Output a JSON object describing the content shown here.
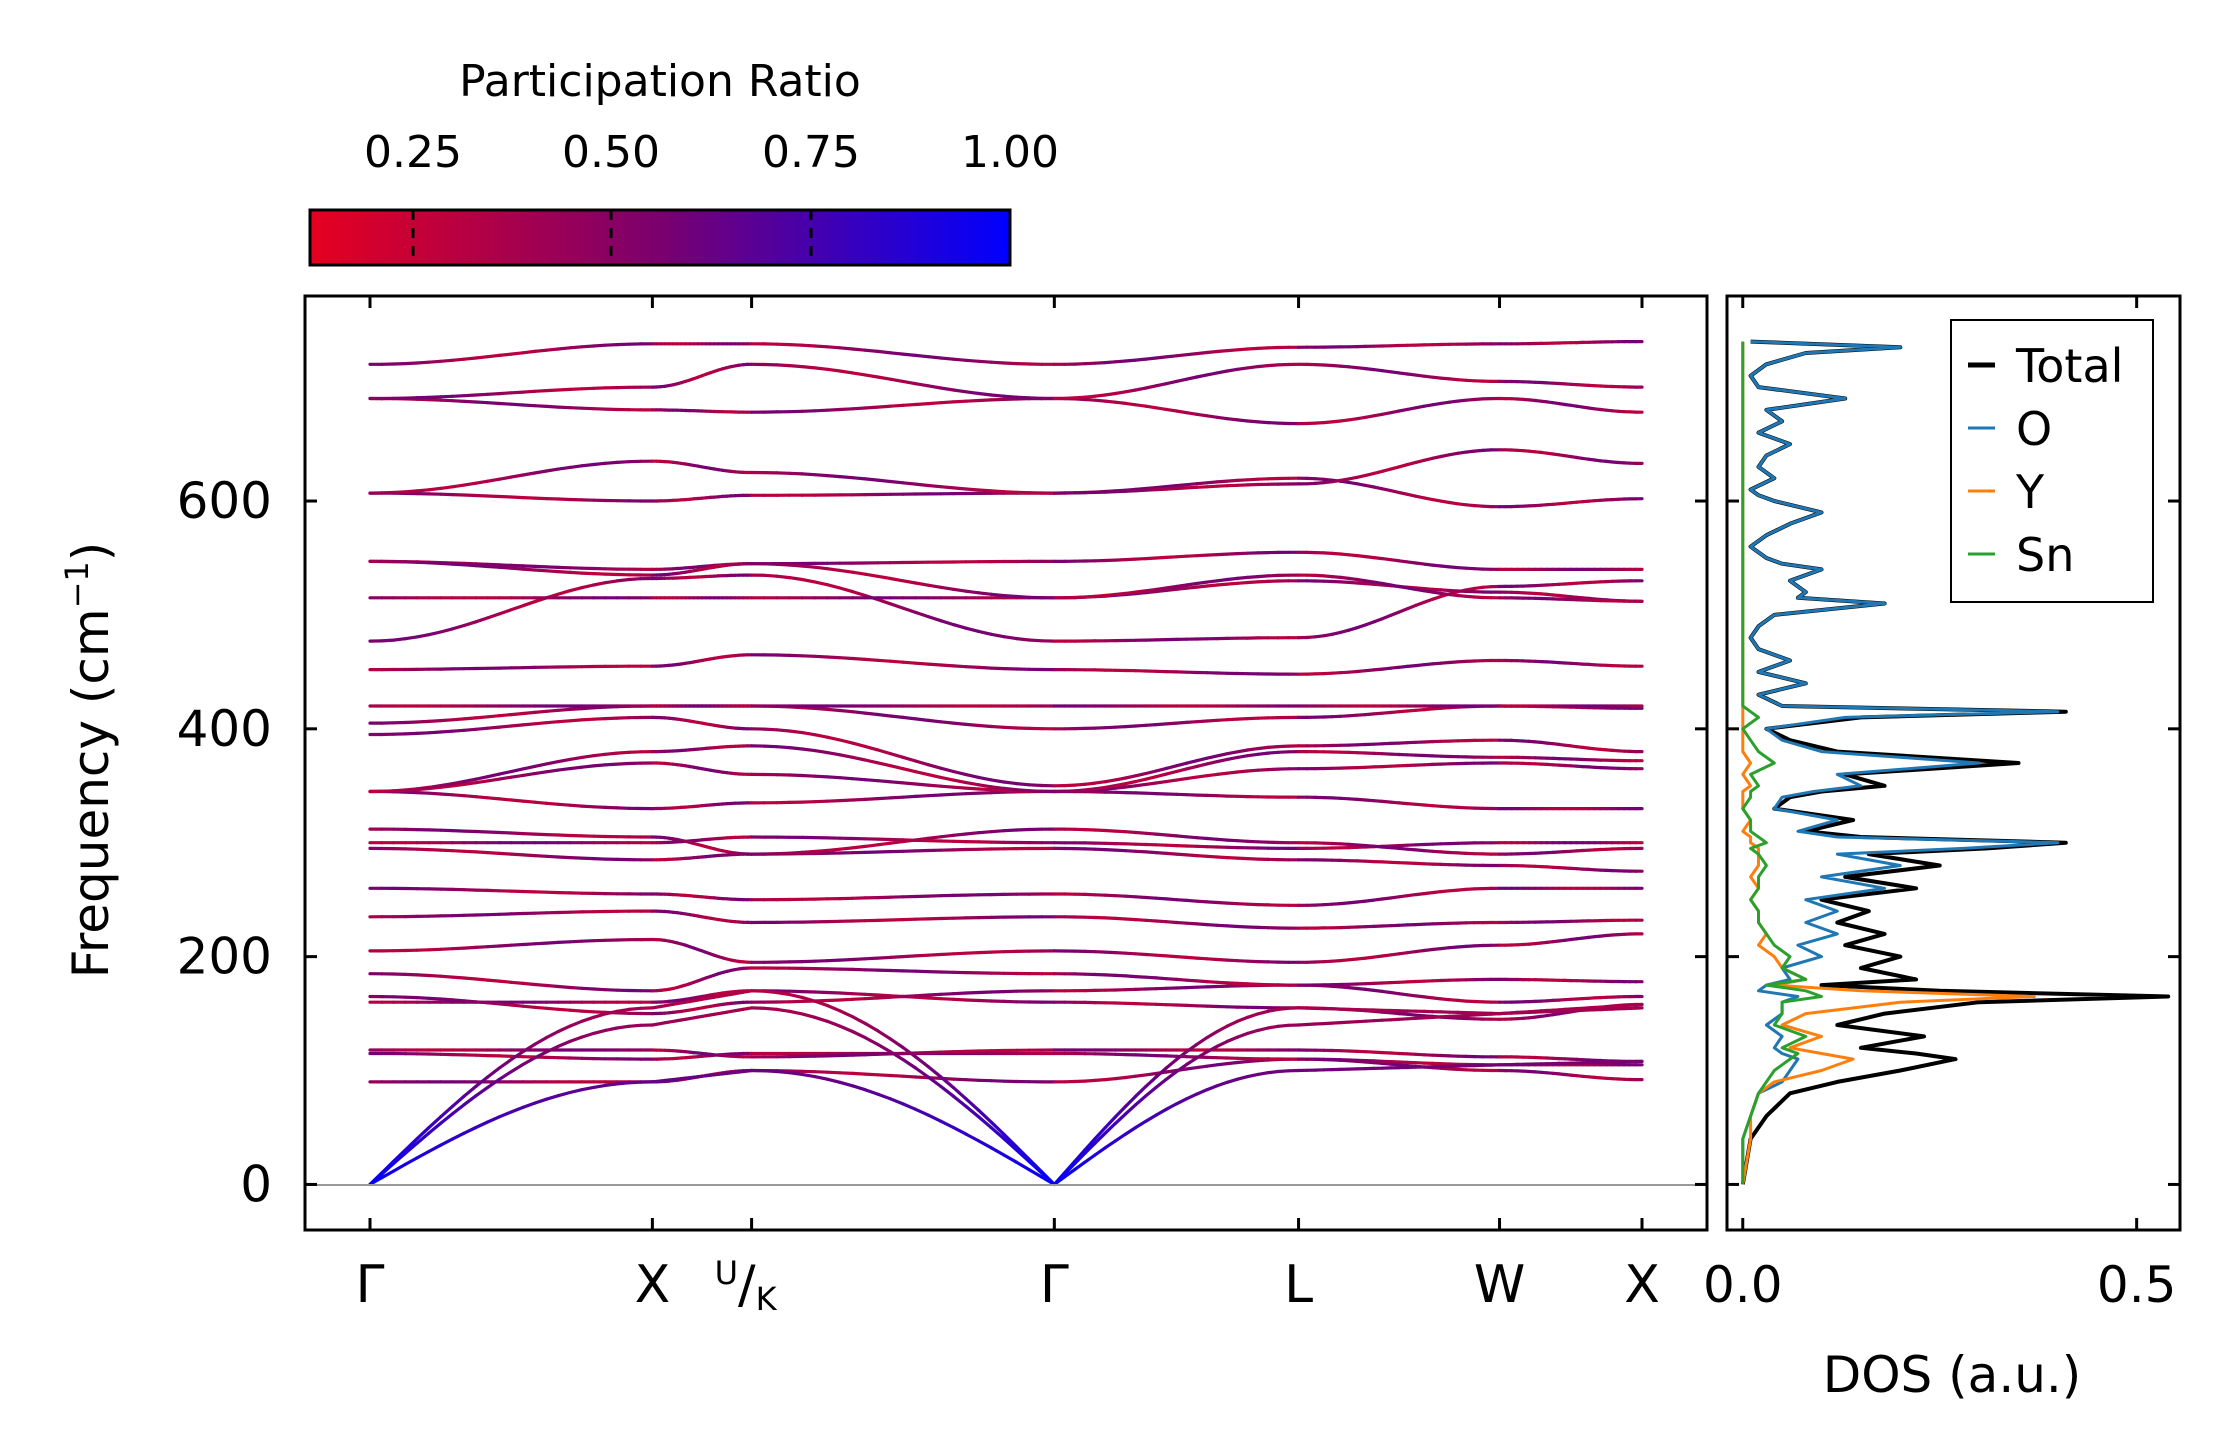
{
  "colorbar": {
    "title": "Participation Ratio",
    "ticks": [
      "0.25",
      "0.50",
      "0.75",
      "1.00"
    ],
    "tick_values": [
      0.25,
      0.5,
      0.75,
      1.0
    ],
    "range": [
      0.12,
      1.0
    ],
    "color_low": "#e6001f",
    "color_mid": "#7a006e",
    "color_high": "#0000ff"
  },
  "chart_data": [
    {
      "type": "line",
      "name": "phonon-band-structure",
      "ylabel": "Frequency (cm",
      "ylabel_sup": "−1",
      "ylabel_close": ")",
      "ylim": [
        -40,
        780
      ],
      "y_ticks": [
        0,
        200,
        400,
        600
      ],
      "y_tick_labels": [
        "0",
        "200",
        "400",
        "600"
      ],
      "kpath_labels": [
        "Γ",
        "X",
        "U/K",
        "Γ",
        "L",
        "W",
        "X"
      ],
      "kpath_positions": [
        0,
        0.222,
        0.3,
        0.538,
        0.73,
        0.888,
        1.0
      ],
      "kpath_display": [
        "Γ",
        "X",
        "",
        "Γ",
        "L",
        "W",
        "X"
      ],
      "uk_label": {
        "u": "U",
        "k": "K"
      },
      "flat_bands_at_nodes": [
        [
          90,
          90,
          100,
          90,
          110,
          100,
          92
        ],
        [
          115,
          110,
          115,
          115,
          110,
          105,
          105
        ],
        [
          118,
          118,
          112,
          118,
          118,
          112,
          108
        ],
        [
          160,
          160,
          170,
          160,
          155,
          145,
          158
        ],
        [
          165,
          150,
          160,
          170,
          175,
          160,
          165
        ],
        [
          185,
          170,
          190,
          185,
          175,
          180,
          178
        ],
        [
          205,
          215,
          195,
          205,
          195,
          210,
          220
        ],
        [
          235,
          240,
          230,
          235,
          225,
          230,
          232
        ],
        [
          260,
          255,
          250,
          255,
          245,
          260,
          260
        ],
        [
          295,
          285,
          290,
          295,
          285,
          280,
          275
        ],
        [
          300,
          300,
          305,
          300,
          295,
          300,
          300
        ],
        [
          312,
          305,
          290,
          312,
          300,
          290,
          295
        ],
        [
          345,
          330,
          335,
          345,
          340,
          330,
          330
        ],
        [
          345,
          370,
          360,
          345,
          365,
          370,
          365
        ],
        [
          345,
          380,
          385,
          345,
          380,
          375,
          372
        ],
        [
          395,
          410,
          400,
          350,
          385,
          390,
          380
        ],
        [
          405,
          420,
          420,
          400,
          410,
          420,
          418
        ],
        [
          420,
          420,
          420,
          420,
          420,
          420,
          420
        ],
        [
          452,
          455,
          465,
          452,
          448,
          460,
          455
        ],
        [
          477,
          532,
          535,
          477,
          480,
          525,
          530
        ],
        [
          515,
          515,
          515,
          515,
          530,
          520,
          512
        ],
        [
          547,
          540,
          545,
          547,
          555,
          540,
          540
        ],
        [
          547,
          535,
          545,
          515,
          535,
          515,
          512
        ],
        [
          607,
          600,
          605,
          607,
          620,
          595,
          602
        ],
        [
          607,
          635,
          625,
          607,
          615,
          645,
          633
        ],
        [
          690,
          680,
          678,
          690,
          668,
          690,
          678
        ],
        [
          690,
          700,
          720,
          690,
          720,
          705,
          700
        ],
        [
          720,
          738,
          738,
          720,
          735,
          738,
          740
        ]
      ],
      "acoustic_bands": [
        [
          0,
          90,
          100,
          0,
          100,
          105,
          108
        ],
        [
          0,
          140,
          155,
          0,
          140,
          150,
          155
        ],
        [
          0,
          155,
          170,
          0,
          155,
          150,
          158
        ]
      ]
    },
    {
      "type": "line",
      "name": "dos",
      "xlabel": "DOS (a.u.)",
      "xlim": [
        -0.02,
        0.555
      ],
      "x_ticks": [
        0.0,
        0.5
      ],
      "x_tick_labels": [
        "0.0",
        "0.5"
      ],
      "ylim": [
        -40,
        780
      ],
      "freq": [
        0,
        40,
        60,
        80,
        90,
        100,
        110,
        115,
        120,
        130,
        140,
        150,
        160,
        165,
        170,
        175,
        180,
        190,
        200,
        210,
        220,
        230,
        240,
        250,
        260,
        270,
        280,
        290,
        295,
        300,
        305,
        310,
        320,
        330,
        340,
        345,
        350,
        360,
        370,
        380,
        390,
        400,
        410,
        415,
        420,
        430,
        440,
        450,
        460,
        470,
        480,
        490,
        500,
        510,
        515,
        520,
        530,
        540,
        545,
        550,
        560,
        570,
        580,
        590,
        600,
        605,
        610,
        620,
        630,
        640,
        650,
        660,
        670,
        680,
        690,
        700,
        710,
        720,
        730,
        735,
        740
      ],
      "series": [
        {
          "name": "Total",
          "color": "#000000",
          "values": [
            0,
            0.01,
            0.03,
            0.06,
            0.12,
            0.2,
            0.27,
            0.22,
            0.15,
            0.23,
            0.12,
            0.18,
            0.3,
            0.54,
            0.25,
            0.1,
            0.22,
            0.15,
            0.2,
            0.13,
            0.18,
            0.12,
            0.16,
            0.1,
            0.22,
            0.13,
            0.25,
            0.16,
            0.31,
            0.41,
            0.15,
            0.08,
            0.14,
            0.04,
            0.06,
            0.1,
            0.18,
            0.13,
            0.35,
            0.12,
            0.06,
            0.03,
            0.15,
            0.41,
            0.05,
            0.02,
            0.08,
            0.02,
            0.06,
            0.02,
            0.01,
            0.02,
            0.04,
            0.18,
            0.07,
            0.08,
            0.06,
            0.1,
            0.05,
            0.03,
            0.01,
            0.03,
            0.06,
            0.1,
            0.04,
            0.02,
            0.01,
            0.04,
            0.02,
            0.03,
            0.06,
            0.02,
            0.05,
            0.03,
            0.13,
            0.02,
            0.01,
            0.03,
            0.08,
            0.2,
            0.01
          ]
        },
        {
          "name": "O",
          "color": "#1f77b4",
          "values": [
            0,
            0.0,
            0.01,
            0.02,
            0.05,
            0.06,
            0.07,
            0.05,
            0.04,
            0.05,
            0.03,
            0.05,
            0.05,
            0.07,
            0.02,
            0.03,
            0.06,
            0.05,
            0.1,
            0.07,
            0.12,
            0.08,
            0.12,
            0.08,
            0.18,
            0.1,
            0.2,
            0.12,
            0.28,
            0.4,
            0.12,
            0.07,
            0.12,
            0.04,
            0.05,
            0.09,
            0.15,
            0.12,
            0.3,
            0.1,
            0.05,
            0.03,
            0.13,
            0.4,
            0.05,
            0.02,
            0.08,
            0.02,
            0.06,
            0.02,
            0.01,
            0.02,
            0.04,
            0.18,
            0.07,
            0.08,
            0.06,
            0.1,
            0.05,
            0.03,
            0.01,
            0.03,
            0.06,
            0.1,
            0.04,
            0.02,
            0.01,
            0.04,
            0.02,
            0.03,
            0.06,
            0.02,
            0.05,
            0.03,
            0.13,
            0.02,
            0.01,
            0.03,
            0.08,
            0.2,
            0.01
          ]
        },
        {
          "name": "Y",
          "color": "#ff7f0e",
          "values": [
            0,
            0.01,
            0.01,
            0.02,
            0.04,
            0.1,
            0.14,
            0.1,
            0.06,
            0.1,
            0.05,
            0.08,
            0.2,
            0.37,
            0.15,
            0.04,
            0.08,
            0.05,
            0.04,
            0.02,
            0.03,
            0.02,
            0.02,
            0.01,
            0.02,
            0.01,
            0.02,
            0.02,
            0.02,
            0.01,
            0.01,
            0.0,
            0.01,
            0.0,
            0.0,
            0.0,
            0.01,
            0.0,
            0.01,
            0.0,
            0.0,
            0.0,
            0.0,
            0.0,
            0.0,
            0.0,
            0.0,
            0.0,
            0.0,
            0.0,
            0.0,
            0.0,
            0.0,
            0.0,
            0.0,
            0.0,
            0.0,
            0.0,
            0.0,
            0.0,
            0.0,
            0.0,
            0.0,
            0.0,
            0.0,
            0.0,
            0.0,
            0.0,
            0.0,
            0.0,
            0.0,
            0.0,
            0.0,
            0.0,
            0.0,
            0.0,
            0.0,
            0.0,
            0.0,
            0.0,
            0.0
          ]
        },
        {
          "name": "Sn",
          "color": "#2ca02c",
          "values": [
            0,
            0.0,
            0.01,
            0.02,
            0.03,
            0.04,
            0.06,
            0.07,
            0.05,
            0.08,
            0.04,
            0.05,
            0.05,
            0.1,
            0.08,
            0.03,
            0.08,
            0.05,
            0.06,
            0.04,
            0.03,
            0.02,
            0.02,
            0.01,
            0.02,
            0.02,
            0.03,
            0.02,
            0.01,
            0.03,
            0.02,
            0.01,
            0.01,
            0.0,
            0.01,
            0.01,
            0.02,
            0.01,
            0.04,
            0.02,
            0.01,
            0.0,
            0.02,
            0.01,
            0.0,
            0.0,
            0.0,
            0.0,
            0.0,
            0.0,
            0.0,
            0.0,
            0.0,
            0.0,
            0.0,
            0.0,
            0.0,
            0.0,
            0.0,
            0.0,
            0.0,
            0.0,
            0.0,
            0.0,
            0.0,
            0.0,
            0.0,
            0.0,
            0.0,
            0.0,
            0.0,
            0.0,
            0.0,
            0.0,
            0.0,
            0.0,
            0.0,
            0.0,
            0.0,
            0.0,
            0.0
          ]
        }
      ],
      "legend": [
        "Total",
        "O",
        "Y",
        "Sn"
      ],
      "legend_position": "top-right"
    }
  ]
}
